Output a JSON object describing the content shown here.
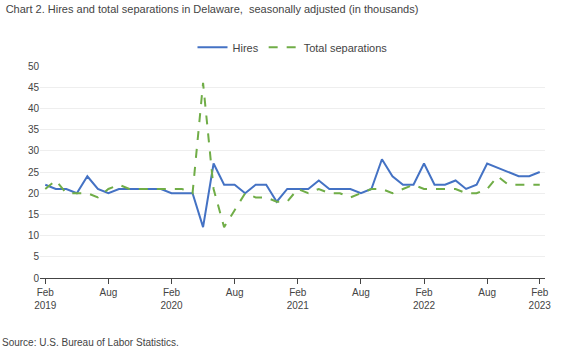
{
  "chart_data": {
    "type": "line",
    "title": "Chart 2. Hires and total separations in Delaware,  seasonally adjusted (in thousands)",
    "annotations": [
      "Source: U.S. Bureau of Labor Statistics."
    ],
    "categories": [
      "Feb\n2019",
      null,
      null,
      null,
      null,
      null,
      "Aug",
      null,
      null,
      null,
      null,
      null,
      "Feb\n2020",
      null,
      null,
      null,
      null,
      null,
      "Aug",
      null,
      null,
      null,
      null,
      null,
      "Feb\n2021",
      null,
      null,
      null,
      null,
      null,
      "Aug",
      null,
      null,
      null,
      null,
      null,
      "Feb\n2022",
      null,
      null,
      null,
      null,
      null,
      "Aug",
      null,
      null,
      null,
      null,
      "Feb\n2023"
    ],
    "series": [
      {
        "name": "Hires",
        "color": "#4472C4",
        "line_style": "solid",
        "values": [
          22,
          21,
          21,
          20,
          24,
          21,
          20,
          21,
          21,
          21,
          21,
          21,
          20,
          20,
          20,
          12,
          27,
          22,
          22,
          20,
          22,
          22,
          18,
          21,
          21,
          21,
          23,
          21,
          21,
          21,
          20,
          21,
          28,
          24,
          22,
          22,
          27,
          22,
          22,
          23,
          21,
          22,
          27,
          26,
          25,
          24,
          24,
          25
        ]
      },
      {
        "name": "Total separations",
        "color": "#70AD47",
        "line_style": "dashed",
        "values": [
          21,
          23,
          20,
          20,
          20,
          19,
          21,
          22,
          21,
          21,
          21,
          21,
          21,
          21,
          20,
          46,
          21,
          12,
          16,
          20,
          19,
          19,
          18,
          18,
          21,
          20,
          21,
          20,
          20,
          19,
          20,
          21,
          21,
          20,
          21,
          22,
          21,
          21,
          21,
          21,
          20,
          20,
          21,
          24,
          22,
          22,
          22,
          22
        ]
      }
    ],
    "ylim": [
      0,
      50
    ],
    "yticks": [
      0,
      5,
      10,
      15,
      20,
      25,
      30,
      35,
      40,
      45,
      50
    ],
    "grid": true,
    "legend": "top"
  }
}
